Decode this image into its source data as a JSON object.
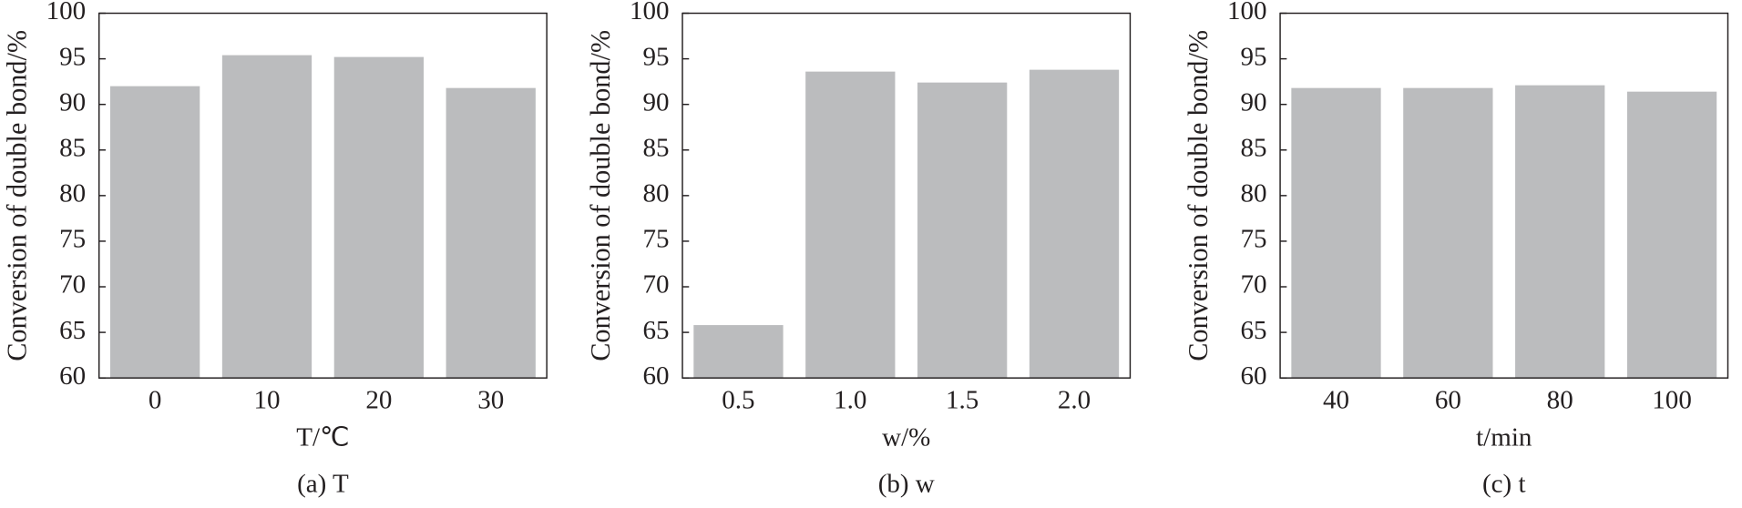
{
  "chart_data": [
    {
      "type": "bar",
      "categories": [
        "0",
        "10",
        "20",
        "30"
      ],
      "values": [
        92.0,
        95.4,
        95.2,
        91.8
      ],
      "color": "#bbbcbe",
      "ylim": [
        60,
        100
      ],
      "yticks": [
        60,
        65,
        70,
        75,
        80,
        85,
        90,
        95,
        100
      ],
      "ylabel": "Conversion of double bond/%",
      "xlabel": "T/℃",
      "caption": "(a) T"
    },
    {
      "type": "bar",
      "categories": [
        "0.5",
        "1.0",
        "1.5",
        "2.0"
      ],
      "values": [
        65.8,
        93.6,
        92.4,
        93.8
      ],
      "color": "#bbbcbe",
      "ylim": [
        60,
        100
      ],
      "yticks": [
        60,
        65,
        70,
        75,
        80,
        85,
        90,
        95,
        100
      ],
      "ylabel": "Conversion of double bond/%",
      "xlabel": "w/%",
      "caption": "(b) w"
    },
    {
      "type": "bar",
      "categories": [
        "40",
        "60",
        "80",
        "100"
      ],
      "values": [
        91.8,
        91.8,
        92.1,
        91.4
      ],
      "color": "#bbbcbe",
      "ylim": [
        60,
        100
      ],
      "yticks": [
        60,
        65,
        70,
        75,
        80,
        85,
        90,
        95,
        100
      ],
      "ylabel": "Conversion of double bond/%",
      "xlabel": "t/min",
      "caption": "(c) t"
    }
  ]
}
